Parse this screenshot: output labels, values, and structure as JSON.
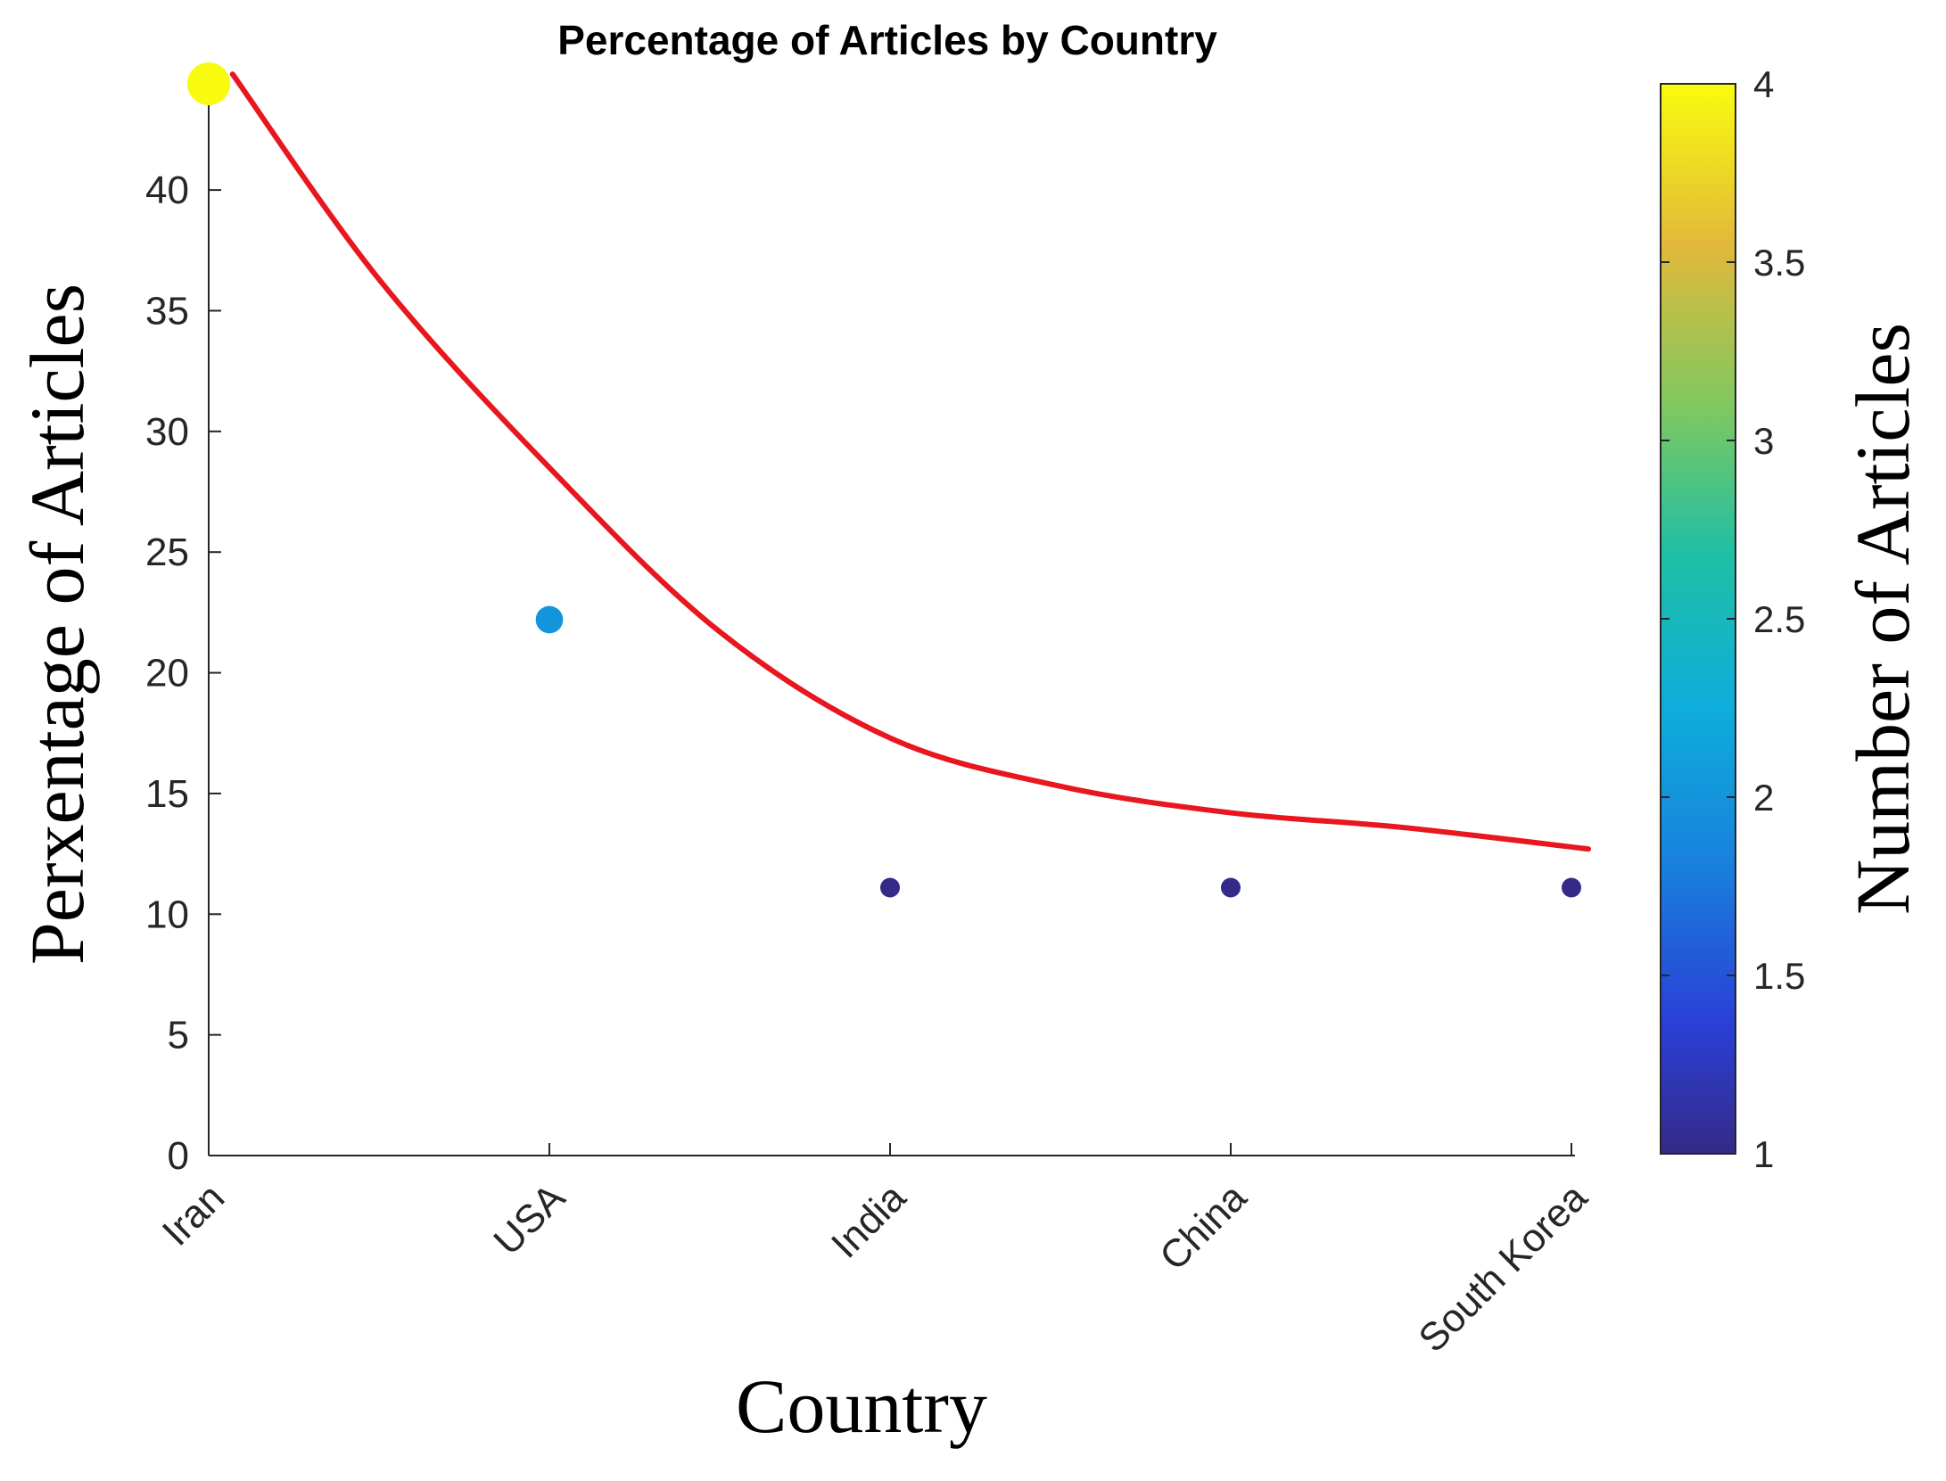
{
  "chart_data": {
    "type": "scatter",
    "title": "Percentage of Articles by Country",
    "xlabel": "Country",
    "ylabel": "Perxentage of Articles",
    "categories": [
      "Iran",
      "USA",
      "India",
      "China",
      "South Korea"
    ],
    "ylim": [
      0,
      44.4
    ],
    "yticks": [
      0,
      5,
      10,
      15,
      20,
      25,
      30,
      35,
      40
    ],
    "grid": false,
    "series": [
      {
        "values": [
          44.4,
          22.2,
          11.1,
          11.1,
          11.1
        ],
        "counts": [
          4,
          2,
          1,
          1,
          1
        ]
      }
    ],
    "trend_line": {
      "color": "#e8161e",
      "x": [
        0.07,
        0.5,
        1.0,
        1.5,
        2.0,
        2.5,
        3.0,
        3.5,
        4.05
      ],
      "y": [
        44.8,
        36.3,
        28.5,
        21.7,
        17.3,
        15.3,
        14.2,
        13.6,
        12.7
      ]
    },
    "colorbar": {
      "label": "Number of Articles",
      "range": [
        1,
        4
      ],
      "ticks": [
        "1",
        "1.5",
        "2",
        "2.5",
        "3",
        "3.5",
        "4"
      ],
      "colormap": "parula"
    }
  }
}
